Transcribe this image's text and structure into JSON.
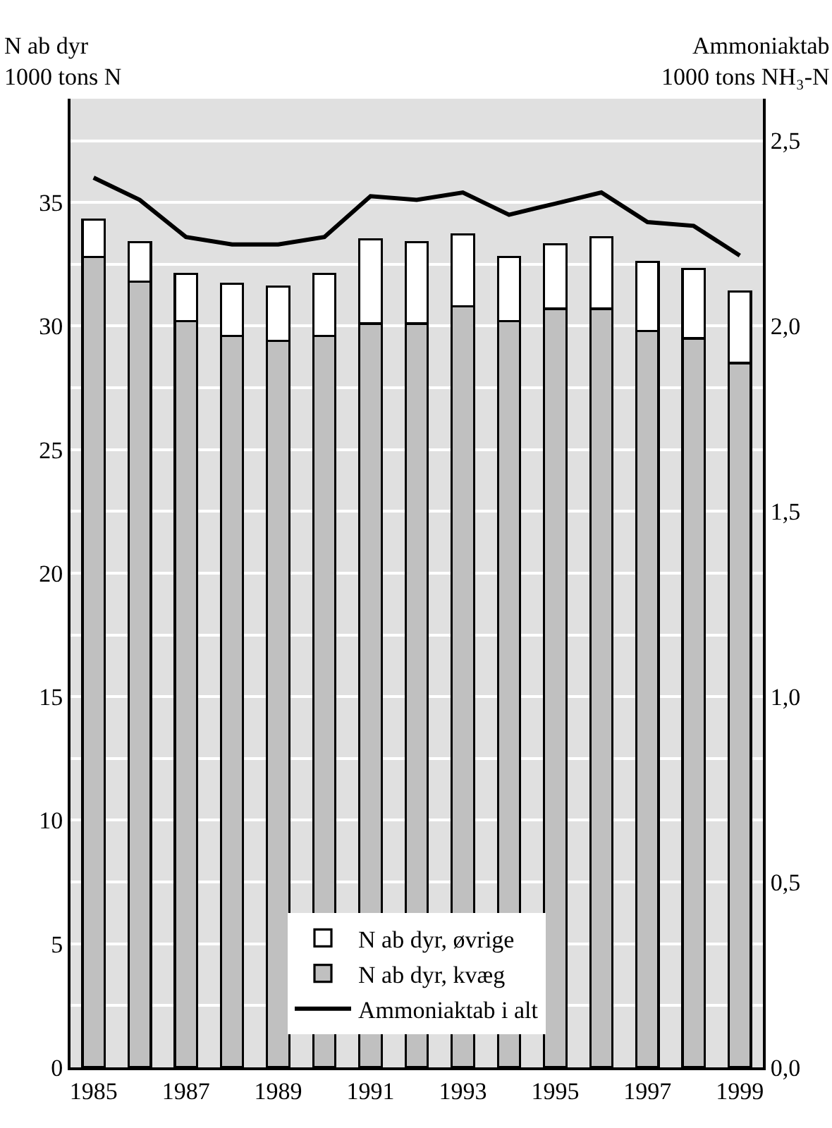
{
  "chart_data": {
    "type": "bar",
    "stacked": true,
    "ylabel": "N ab dyr\n1000 tons N",
    "y2label": "Ammoniaktab\n1000 tons NH₃-N",
    "categories": [
      "1985",
      null,
      "1987",
      null,
      "1989",
      null,
      "1991",
      null,
      "1993",
      null,
      "1995",
      null,
      "1997",
      null,
      "1999"
    ],
    "series": [
      {
        "name": "N ab dyr, kvæg",
        "color": "#c0c0c0",
        "values": [
          32.8,
          31.8,
          30.2,
          29.6,
          29.4,
          29.6,
          30.1,
          30.1,
          30.8,
          30.2,
          30.7,
          30.7,
          29.8,
          29.5,
          28.5
        ]
      },
      {
        "name": "N ab dyr, øvrige",
        "color": "#ffffff",
        "values": [
          1.5,
          1.6,
          1.9,
          2.1,
          2.2,
          2.5,
          3.4,
          3.3,
          2.9,
          2.6,
          2.6,
          2.9,
          2.8,
          2.8,
          2.9
        ]
      },
      {
        "name": "Ammoniaktab i alt",
        "type": "line",
        "axis": "y2",
        "color": "#000000",
        "values": [
          2.4,
          2.34,
          2.24,
          2.22,
          2.22,
          2.24,
          2.35,
          2.34,
          2.36,
          2.3,
          2.33,
          2.36,
          2.28,
          2.27,
          2.19
        ]
      }
    ],
    "ylim": [
      0,
      39.2
    ],
    "yticks": [
      0,
      {
        "value": 2.5,
        "label": null
      },
      5,
      {
        "value": 7.5,
        "label": null
      },
      10,
      {
        "value": 12.5,
        "label": null
      },
      15,
      {
        "value": 17.5,
        "label": null
      },
      20,
      {
        "value": 22.5,
        "label": null
      },
      25,
      {
        "value": 27.5,
        "label": null
      },
      30,
      {
        "value": 32.5,
        "label": null
      },
      35,
      {
        "value": 37.5,
        "label": null
      }
    ],
    "y2lim": [
      0,
      2.613
    ],
    "y2ticks": [
      {
        "value": 0,
        "label": "0,0"
      },
      {
        "value": 0.5,
        "label": "0,5"
      },
      {
        "value": 1,
        "label": "1,0"
      },
      {
        "value": 1.5,
        "label": "1,5"
      },
      {
        "value": 2,
        "label": "2,0"
      },
      {
        "value": 2.5,
        "label": "2,5"
      }
    ],
    "grid": "y",
    "legend": "bottom",
    "marker": "none",
    "line_style": "solid"
  }
}
